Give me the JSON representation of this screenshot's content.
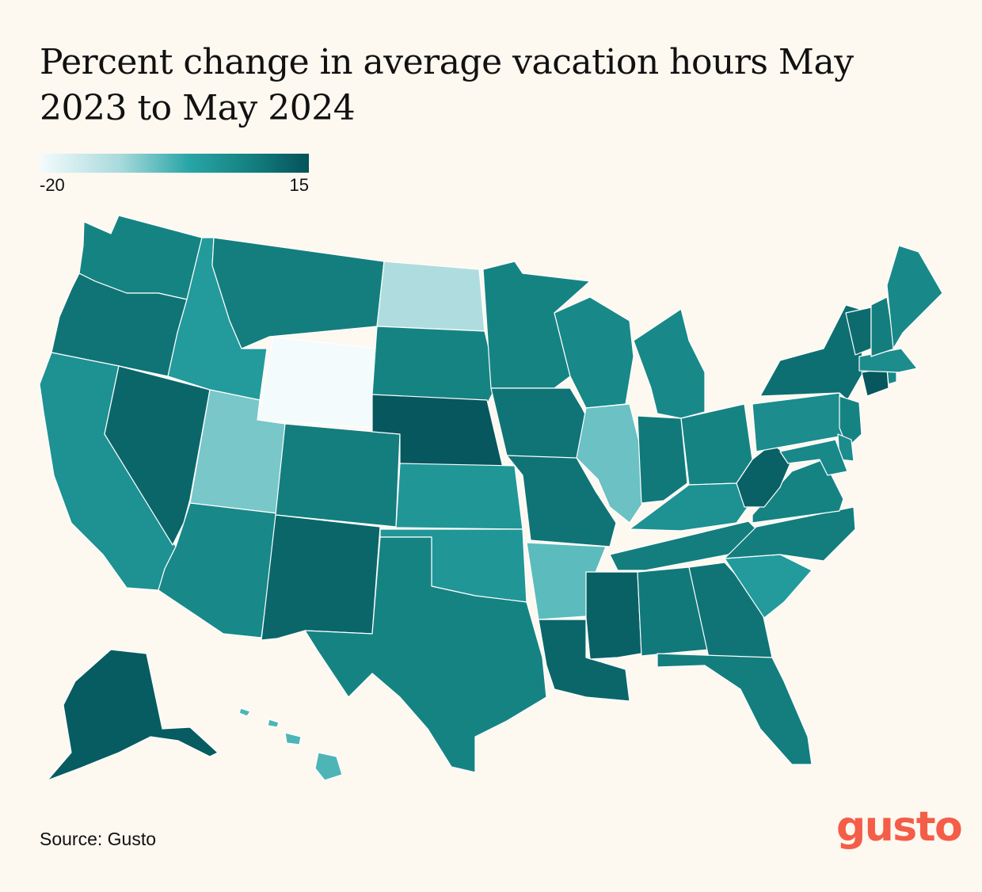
{
  "title": "Percent change in average vacation hours May 2023 to May 2024",
  "legend": {
    "min_label": "-20",
    "max_label": "15",
    "min": -20,
    "max": 15,
    "colors": [
      "#f4fbfc",
      "#a8dadc",
      "#2aa6a8",
      "#137d7d",
      "#04525a"
    ]
  },
  "map": {
    "type": "choropleth",
    "region": "United States",
    "scale": "continuous",
    "states": {
      "WA": 5,
      "OR": 8,
      "CA": 2,
      "NV": 11,
      "ID": 0,
      "MT": 6,
      "WY": -20,
      "UT": -8,
      "AZ": 4,
      "CO": 6,
      "NM": 11,
      "ND": -12,
      "SD": 5,
      "NE": 14,
      "KS": 1,
      "OK": 1,
      "TX": 5,
      "MN": 5,
      "IA": 8,
      "MO": 8,
      "AR": -6,
      "LA": 11,
      "WI": 4,
      "IL": -7,
      "MI": 4,
      "IN": 7,
      "OH": 5,
      "KY": 2,
      "TN": 6,
      "MS": 12,
      "AL": 7,
      "GA": 8,
      "FL": 6,
      "SC": 0,
      "NC": 6,
      "VA": 5,
      "WV": 12,
      "PA": 3,
      "NY": 9,
      "NJ": 5,
      "DE": 3,
      "MD": 4,
      "CT": 14,
      "RI": 4,
      "MA": 3,
      "VT": 10,
      "NH": 6,
      "ME": 4,
      "AK": 13,
      "HI": -5
    }
  },
  "source": "Source: Gusto",
  "logo": "gusto"
}
